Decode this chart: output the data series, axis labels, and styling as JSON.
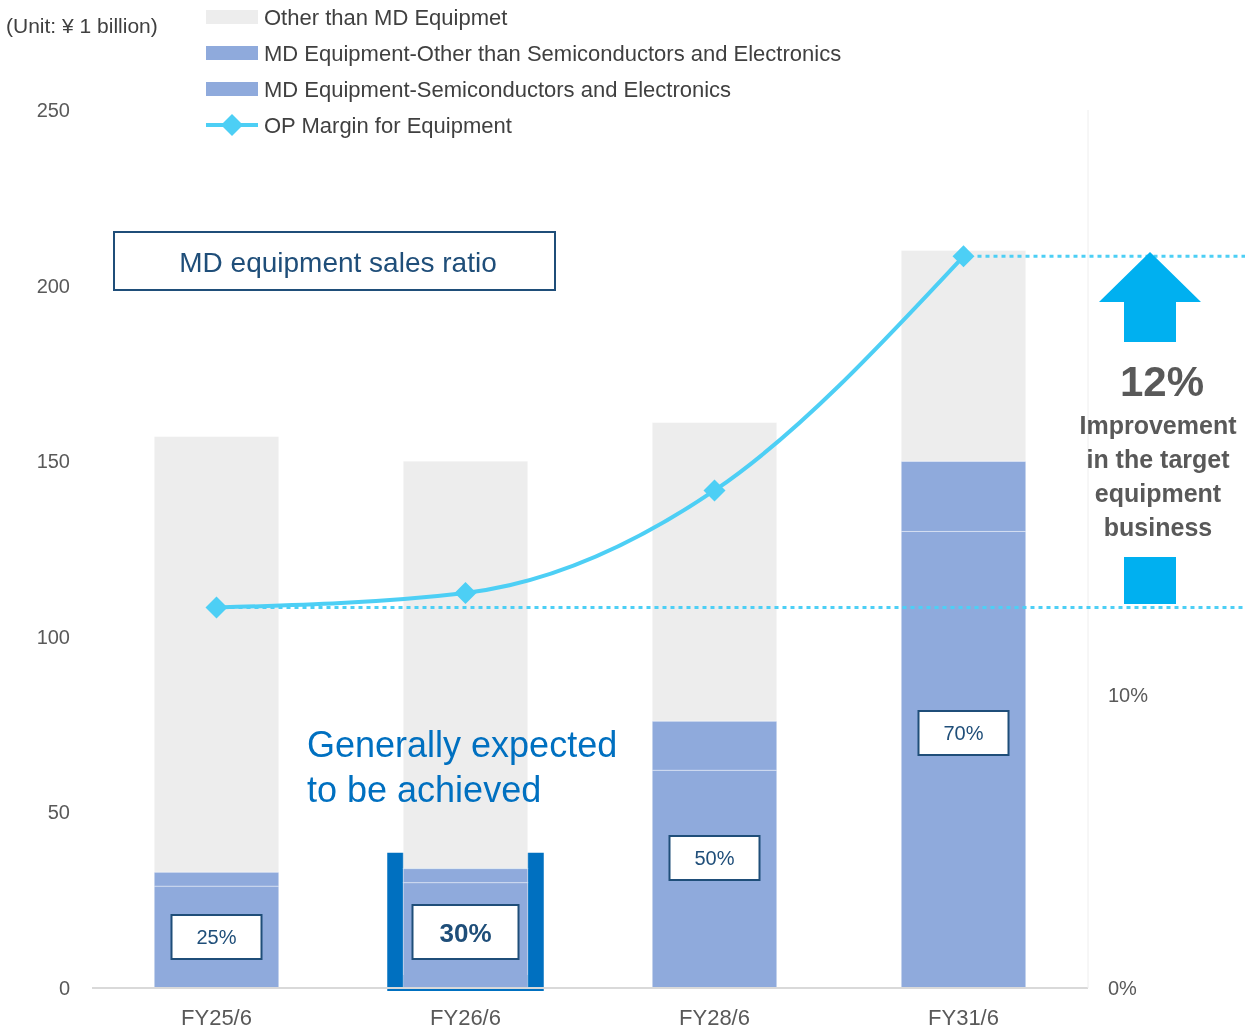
{
  "chart_data": {
    "type": "bar",
    "stacked": true,
    "ylabel": "(Unit: ¥ 1 billion)",
    "categories": [
      "FY25/6",
      "FY26/6",
      "FY28/6",
      "FY31/6"
    ],
    "series": [
      {
        "name": "MD Equipment-Semiconductors and Electronics",
        "color": "#8faadc",
        "values": [
          29,
          30,
          62,
          130
        ]
      },
      {
        "name": "MD Equipment-Other than Semiconductors and Electronics",
        "color": "#8faadc",
        "values": [
          4,
          4,
          14,
          20
        ]
      },
      {
        "name": "Other than MD Equipmet",
        "color": "#ededed",
        "values": [
          124,
          116,
          85,
          60
        ]
      },
      {
        "name": "OP Margin for Equipment",
        "type": "line",
        "axis": "y2",
        "color": "#4dcff5",
        "marker": "diamond",
        "values": [
          13,
          13.5,
          17,
          25
        ]
      }
    ],
    "ylim": [
      0,
      250
    ],
    "yticks": [
      0,
      50,
      100,
      150,
      200,
      250
    ],
    "y2lim": [
      0,
      30
    ],
    "y2ticks": [
      {
        "value": 0,
        "label": "0%"
      },
      {
        "value": 10,
        "label": "10%"
      }
    ],
    "ref_lines": [
      {
        "axis": "y2",
        "value": 13,
        "color": "#4dcff5",
        "line_style": "dotted"
      },
      {
        "axis": "y2",
        "value": 25,
        "color": "#4dcff5",
        "line_style": "dotted"
      }
    ],
    "legend": "top",
    "grid": false,
    "annotations": [
      "MD equipment sales ratio",
      "Generally expected to be achieved",
      "25%",
      "30%",
      "50%",
      "70%",
      "12%",
      "Improvement in the target equipment business"
    ]
  }
}
